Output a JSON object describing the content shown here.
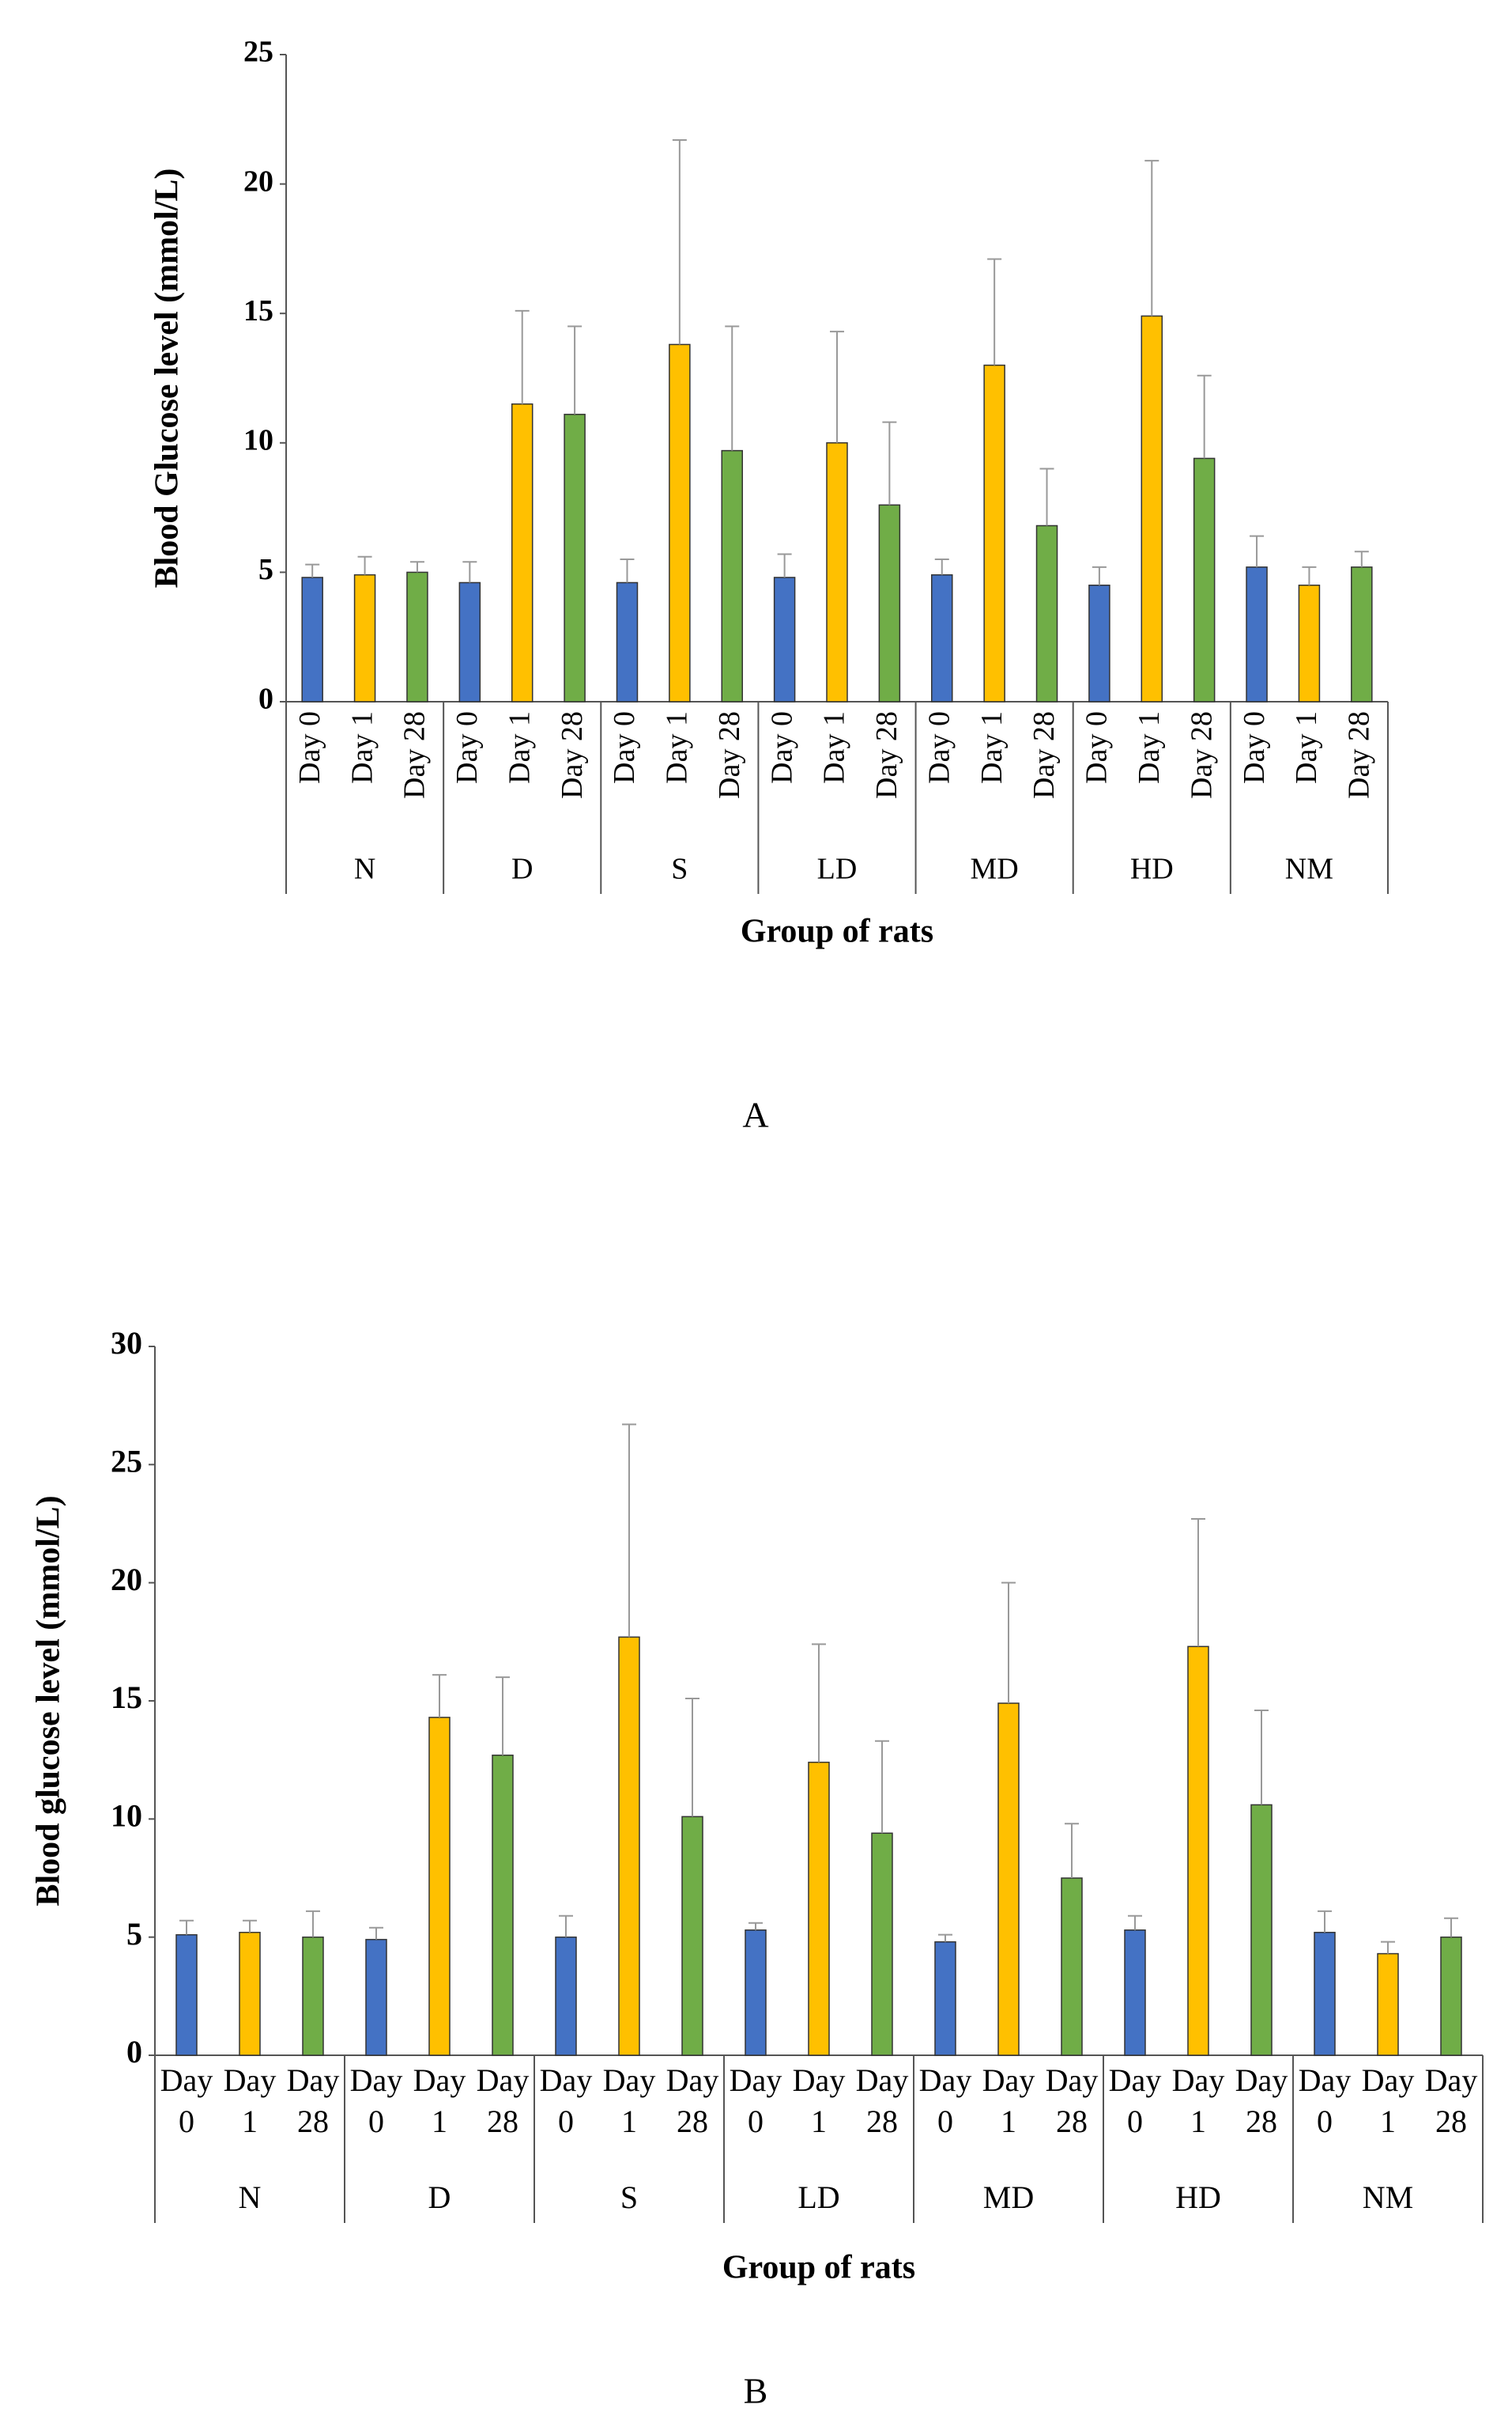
{
  "chart_data": [
    {
      "type": "bar",
      "label": "A",
      "ylabel": "Blood Glucose level (mmol/L)",
      "xlabel": "Group of rats",
      "categories": [
        "N",
        "D",
        "S",
        "LD",
        "MD",
        "HD",
        "NM"
      ],
      "series": [
        {
          "name": "Day 0",
          "color": "#4472c4",
          "values": [
            4.8,
            4.6,
            4.6,
            4.8,
            4.9,
            4.5,
            5.2
          ],
          "errors": [
            0.5,
            0.8,
            0.9,
            0.9,
            0.6,
            0.7,
            1.2
          ]
        },
        {
          "name": "Day 1",
          "color": "#ffc000",
          "values": [
            4.9,
            11.5,
            13.8,
            10.0,
            13.0,
            14.9,
            4.5
          ],
          "errors": [
            0.7,
            3.6,
            7.9,
            4.3,
            4.1,
            6.0,
            0.7
          ]
        },
        {
          "name": "Day 28",
          "color": "#70ad47",
          "values": [
            5.0,
            11.1,
            9.7,
            7.6,
            6.8,
            9.4,
            5.2
          ],
          "errors": [
            0.4,
            3.4,
            4.8,
            3.2,
            2.2,
            3.2,
            0.6
          ]
        }
      ],
      "ylim": [
        0,
        25
      ],
      "yticks": [
        0,
        5,
        10,
        15,
        20,
        25
      ]
    },
    {
      "type": "bar",
      "label": "B",
      "ylabel": "Blood glucose level (mmol/L)",
      "xlabel": "Group of rats",
      "categories": [
        "N",
        "D",
        "S",
        "LD",
        "MD",
        "HD",
        "NM"
      ],
      "series": [
        {
          "name": "Day 0",
          "color": "#4472c4",
          "values": [
            5.1,
            4.9,
            5.0,
            5.3,
            4.8,
            5.3,
            5.2
          ],
          "errors": [
            0.6,
            0.5,
            0.9,
            0.3,
            0.3,
            0.6,
            0.9
          ]
        },
        {
          "name": "Day 1",
          "color": "#ffc000",
          "values": [
            5.2,
            14.3,
            17.7,
            12.4,
            14.9,
            17.3,
            4.3
          ],
          "errors": [
            0.5,
            1.8,
            9.0,
            5.0,
            5.1,
            5.4,
            0.5
          ]
        },
        {
          "name": "Day 28",
          "color": "#70ad47",
          "values": [
            5.0,
            12.7,
            10.1,
            9.4,
            7.5,
            10.6,
            5.0
          ],
          "errors": [
            1.1,
            3.3,
            5.0,
            3.9,
            2.3,
            4.0,
            0.8
          ]
        }
      ],
      "ylim": [
        0,
        30
      ],
      "yticks": [
        0,
        5,
        10,
        15,
        20,
        25,
        30
      ]
    }
  ]
}
